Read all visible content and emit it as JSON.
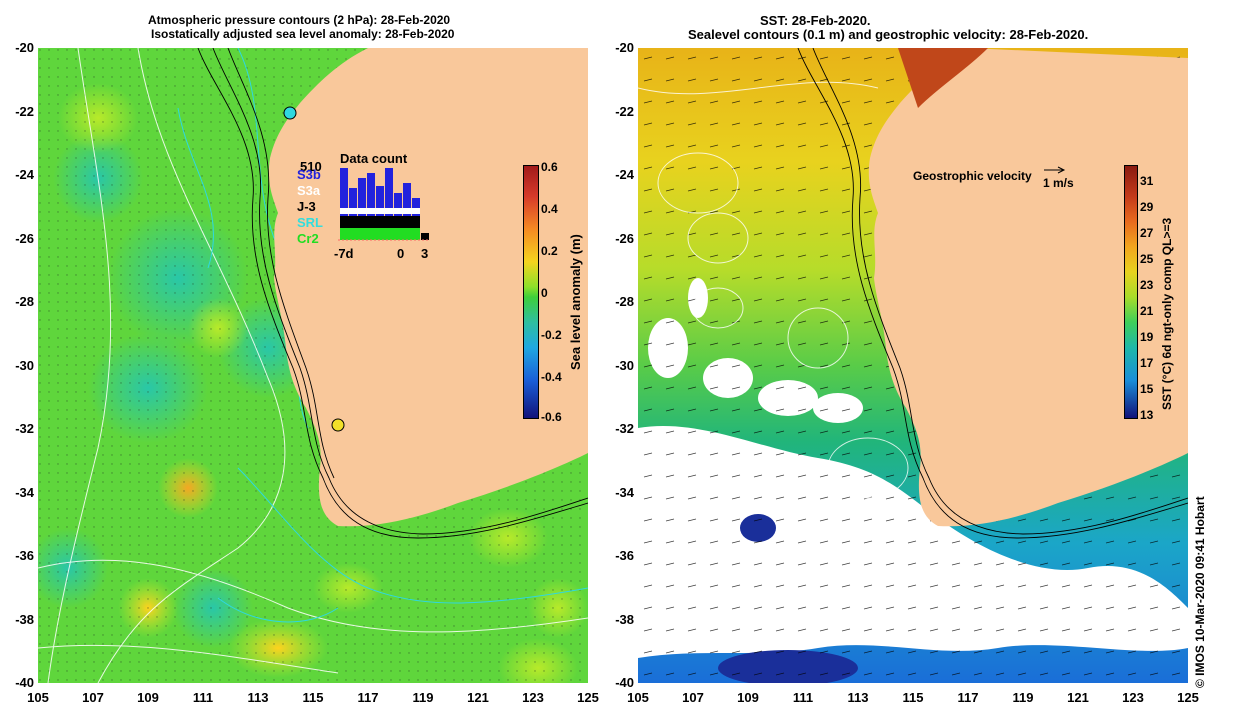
{
  "left_panel": {
    "title_line1": "Atmospheric pressure contours (2 hPa): 28-Feb-2020",
    "title_line2": "Isostatically adjusted sea level anomaly: 28-Feb-2020",
    "colorbar_label": "Sea level anomaly (m)",
    "colorbar_ticks": [
      "0.6",
      "0.4",
      "0.2",
      "0",
      "-0.2",
      "-0.4",
      "-0.6"
    ],
    "legend": {
      "title": "Data count",
      "max_count": "510",
      "missions": [
        {
          "name": "S3b",
          "color": "#2222dd"
        },
        {
          "name": "S3a",
          "color": "#ffffff"
        },
        {
          "name": "J-3",
          "color": "#000000"
        },
        {
          "name": "SRL",
          "color": "#33dddd"
        },
        {
          "name": "Cr2",
          "color": "#22dd22"
        }
      ],
      "axis_labels": [
        "-7d",
        "0",
        "3"
      ]
    }
  },
  "right_panel": {
    "title_line1": "SST: 28-Feb-2020.",
    "title_line2": "Sealevel contours (0.1 m) and geostrophic velocity: 28-Feb-2020.",
    "colorbar_label": "SST (°C) 6d ngt-only comp QL>=3",
    "colorbar_ticks": [
      "31",
      "29",
      "27",
      "25",
      "23",
      "21",
      "19",
      "17",
      "15",
      "13"
    ],
    "velocity_label": "Geostrophic velocity",
    "velocity_scale": "1 m/s"
  },
  "axes": {
    "x_ticks": [
      "105",
      "107",
      "109",
      "111",
      "113",
      "115",
      "117",
      "119",
      "121",
      "123",
      "125"
    ],
    "y_ticks": [
      "-20",
      "-22",
      "-24",
      "-26",
      "-28",
      "-30",
      "-32",
      "-34",
      "-36",
      "-38",
      "-40"
    ]
  },
  "credit": "© IMOS 10-Mar-2020 09:41 Hobart",
  "colors": {
    "land": "#f9c89b",
    "sea_left": "#5fd63c",
    "sea_right_warm": "#f2d21e",
    "sea_right_cool": "#1fb27a",
    "cloud": "#ffffff"
  }
}
